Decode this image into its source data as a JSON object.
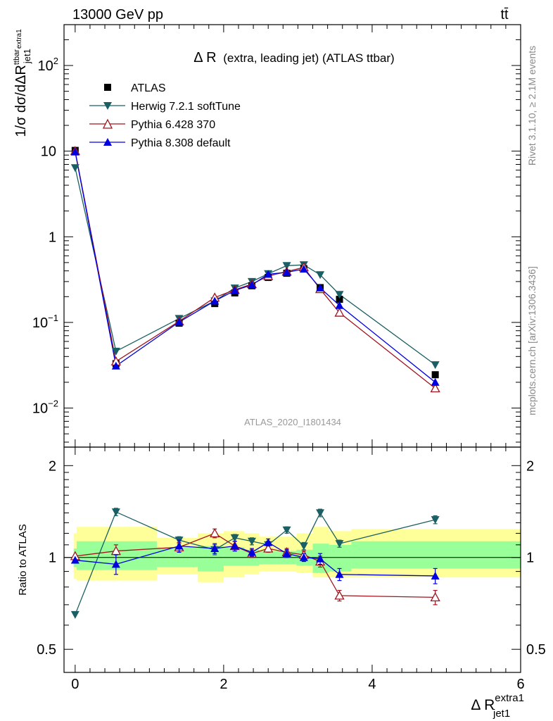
{
  "header": {
    "left": "13000 GeV pp",
    "right": "tt̄"
  },
  "side_labels": {
    "rivet": "Rivet 3.1.10, ≥ 2.1M events",
    "mcplots": "mcplots.cern.ch [arXiv:1306.3436]"
  },
  "colors": {
    "atlas": "#000000",
    "herwig": "#1a5f63",
    "pythia6": "#a0141e",
    "pythia8": "#0000e0",
    "band_outer": "#ffff99",
    "band_inner": "#99ff99"
  },
  "chart_data": {
    "type": "line",
    "title_main": "Δ R",
    "title_sub": "(extra, leading jet) (ATLAS ttbar)",
    "analysis_id": "ATLAS_2020_I1801434",
    "ylabel_main": "1/σ dσ/dΔR",
    "ylabel_main_sup": "ttbar",
    "ylabel_main_sub": "jet1",
    "ylabel_main_sub_sup": "extra1",
    "ylabel_ratio": "Ratio to ATLAS",
    "xlabel": "Δ R",
    "xlabel_sup": "extra1",
    "xlabel_sub": "jet1",
    "xlim": [
      -0.15,
      6.0
    ],
    "ylim_main": [
      0.0035,
      300
    ],
    "ylim_ratio": [
      0.42,
      2.3
    ],
    "x_ticks": [
      {
        "v": 0,
        "label": "0"
      },
      {
        "v": 2,
        "label": "2"
      },
      {
        "v": 4,
        "label": "4"
      },
      {
        "v": 6,
        "label": "6"
      }
    ],
    "y_ticks_main": [
      {
        "v": 100,
        "base": "10",
        "exp": "2"
      },
      {
        "v": 10,
        "base": "10",
        "exp": ""
      },
      {
        "v": 1,
        "base": "1",
        "exp": ""
      },
      {
        "v": 0.1,
        "base": "10",
        "exp": "−1"
      },
      {
        "v": 0.01,
        "base": "10",
        "exp": "−2"
      }
    ],
    "y_ticks_ratio": [
      {
        "v": 0.5,
        "label": "0.5"
      },
      {
        "v": 1,
        "label": "1"
      },
      {
        "v": 2,
        "label": "2"
      }
    ],
    "bins": [
      [
        -0.02,
        0.02
      ],
      [
        0.02,
        1.1
      ],
      [
        1.1,
        1.65
      ],
      [
        1.65,
        2.0
      ],
      [
        2.0,
        2.28
      ],
      [
        2.28,
        2.48
      ],
      [
        2.48,
        2.72
      ],
      [
        2.72,
        2.98
      ],
      [
        2.98,
        3.2
      ],
      [
        3.2,
        3.42
      ],
      [
        3.42,
        3.72
      ],
      [
        3.72,
        6.0
      ]
    ],
    "x": [
      0.0,
      0.55,
      1.4,
      1.88,
      2.15,
      2.38,
      2.6,
      2.85,
      3.08,
      3.3,
      3.56,
      4.85
    ],
    "band_inner": [
      [
        0.93,
        1.07
      ],
      [
        0.91,
        1.13
      ],
      [
        0.93,
        1.08
      ],
      [
        0.9,
        1.09
      ],
      [
        0.94,
        1.08
      ],
      [
        0.94,
        1.06
      ],
      [
        0.95,
        1.05
      ],
      [
        0.95,
        1.05
      ],
      [
        0.94,
        1.06
      ],
      [
        0.89,
        1.11
      ],
      [
        0.9,
        1.1
      ],
      [
        0.92,
        1.13
      ]
    ],
    "band_outer": [
      [
        0.85,
        1.2
      ],
      [
        0.84,
        1.26
      ],
      [
        0.88,
        1.16
      ],
      [
        0.83,
        1.2
      ],
      [
        0.86,
        1.22
      ],
      [
        0.88,
        1.2
      ],
      [
        0.9,
        1.17
      ],
      [
        0.9,
        1.17
      ],
      [
        0.89,
        1.2
      ],
      [
        0.86,
        1.26
      ],
      [
        0.86,
        1.22
      ],
      [
        0.86,
        1.24
      ]
    ],
    "series": [
      {
        "name": "ATLAS",
        "marker": "square",
        "values": [
          10.2,
          0.033,
          0.098,
          0.166,
          0.221,
          0.268,
          0.335,
          0.375,
          0.425,
          0.255,
          0.186,
          0.0245
        ],
        "ratio": []
      },
      {
        "name": "Herwig 7.2.1 softTune",
        "marker": "tri-down",
        "values": [
          6.4,
          0.046,
          0.111,
          0.178,
          0.252,
          0.3,
          0.37,
          0.46,
          0.47,
          0.36,
          0.212,
          0.032
        ],
        "ratio": [
          0.65,
          1.41,
          1.14,
          1.06,
          1.16,
          1.13,
          1.1,
          1.23,
          1.09,
          1.4,
          1.11,
          1.33
        ],
        "ratio_err": [
          0.0,
          0.04,
          0.03,
          0.04,
          0.03,
          0.03,
          0.03,
          0.03,
          0.03,
          0.04,
          0.03,
          0.04
        ]
      },
      {
        "name": "Pythia 6.428 370",
        "marker": "tri-up-open",
        "values": [
          10.0,
          0.035,
          0.103,
          0.195,
          0.24,
          0.28,
          0.348,
          0.392,
          0.44,
          0.245,
          0.13,
          0.017
        ],
        "ratio": [
          1.01,
          1.05,
          1.08,
          1.2,
          1.09,
          1.03,
          1.07,
          1.04,
          1.02,
          0.97,
          0.75,
          0.74
        ],
        "ratio_err": [
          0.0,
          0.05,
          0.04,
          0.04,
          0.04,
          0.03,
          0.03,
          0.03,
          0.03,
          0.04,
          0.03,
          0.04
        ]
      },
      {
        "name": "Pythia 8.308 default",
        "marker": "tri-up",
        "values": [
          9.8,
          0.031,
          0.101,
          0.178,
          0.236,
          0.274,
          0.365,
          0.385,
          0.42,
          0.253,
          0.158,
          0.02
        ],
        "ratio": [
          0.98,
          0.95,
          1.09,
          1.07,
          1.09,
          1.04,
          1.12,
          1.03,
          1.0,
          0.99,
          0.88,
          0.87
        ],
        "ratio_err": [
          0.0,
          0.07,
          0.05,
          0.04,
          0.04,
          0.03,
          0.03,
          0.03,
          0.03,
          0.04,
          0.04,
          0.05
        ]
      }
    ]
  }
}
